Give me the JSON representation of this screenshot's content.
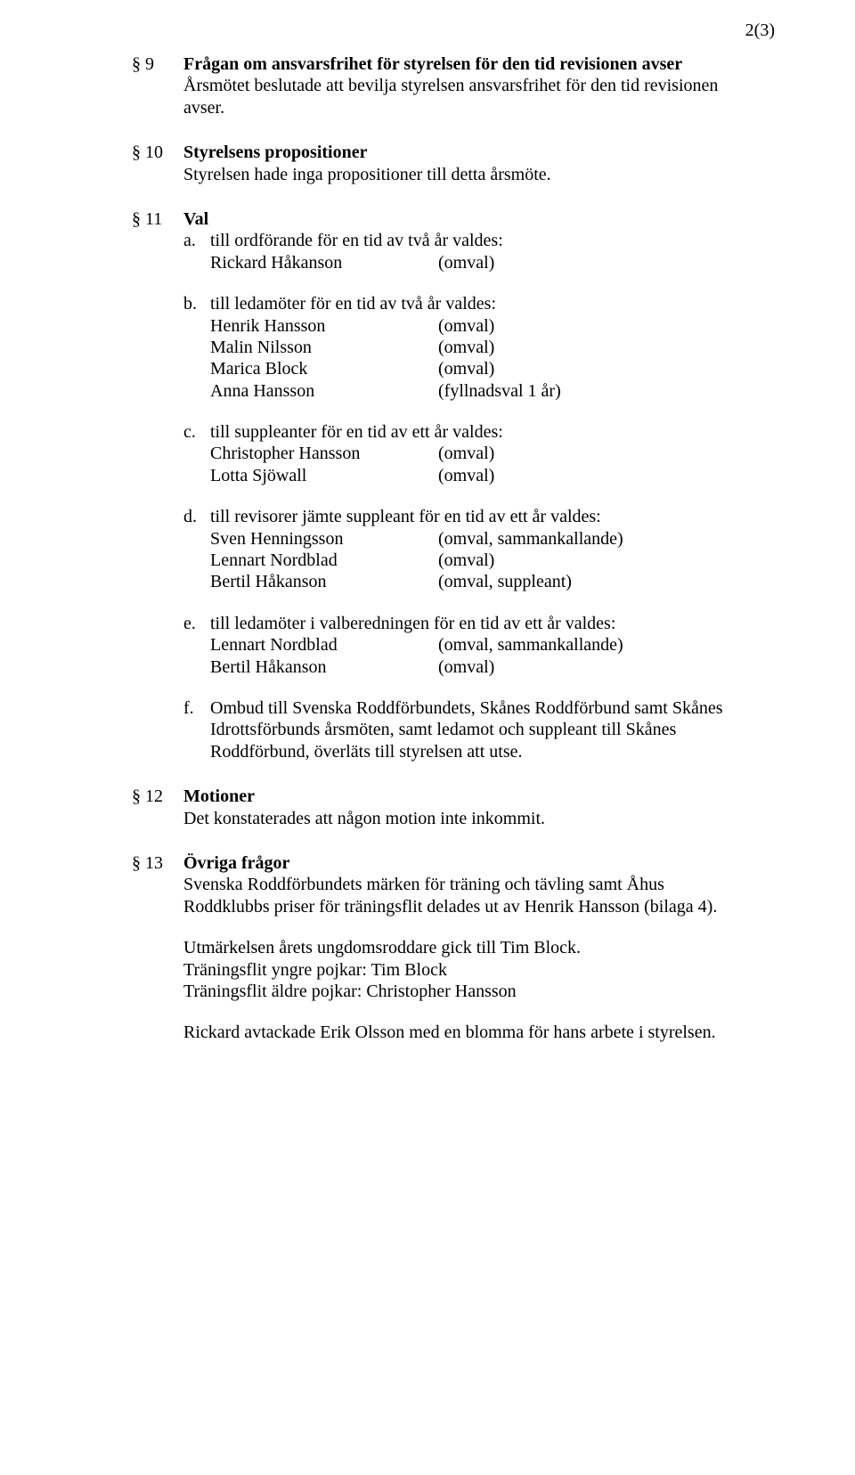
{
  "page_number": "2(3)",
  "s9": {
    "num": "§ 9",
    "title": "Frågan om ansvarsfrihet för styrelsen för den tid revisionen avser",
    "text": "Årsmötet beslutade att bevilja styrelsen ansvarsfrihet för den tid revisionen avser."
  },
  "s10": {
    "num": "§ 10",
    "title": "Styrelsens propositioner",
    "text": "Styrelsen hade inga propositioner till detta årsmöte."
  },
  "s11": {
    "num": "§ 11",
    "title": "Val",
    "a": {
      "lett": "a.",
      "lead": "till ordförande för en tid av två år valdes:",
      "rows": [
        {
          "name": "Rickard Håkanson",
          "note": "(omval)"
        }
      ]
    },
    "b": {
      "lett": "b.",
      "lead": "till ledamöter för en tid av två år valdes:",
      "rows": [
        {
          "name": "Henrik Hansson",
          "note": "(omval)"
        },
        {
          "name": "Malin Nilsson",
          "note": "(omval)"
        },
        {
          "name": "Marica Block",
          "note": "(omval)"
        },
        {
          "name": "Anna Hansson",
          "note": "(fyllnadsval 1 år)"
        }
      ]
    },
    "c": {
      "lett": "c.",
      "lead": "till suppleanter för en tid av ett år valdes:",
      "rows": [
        {
          "name": "Christopher Hansson",
          "note": "(omval)"
        },
        {
          "name": "Lotta Sjöwall",
          "note": "(omval)"
        }
      ]
    },
    "d": {
      "lett": "d.",
      "lead": "till revisorer jämte suppleant för en tid av ett år valdes:",
      "rows": [
        {
          "name": "Sven Henningsson",
          "note": "(omval, sammankallande)"
        },
        {
          "name": "Lennart Nordblad",
          "note": "(omval)"
        },
        {
          "name": "Bertil Håkanson",
          "note": "(omval, suppleant)"
        }
      ]
    },
    "e": {
      "lett": "e.",
      "lead": "till ledamöter i valberedningen för en tid av ett år valdes:",
      "rows": [
        {
          "name": "Lennart Nordblad",
          "note": "(omval, sammankallande)"
        },
        {
          "name": "Bertil Håkanson",
          "note": "(omval)"
        }
      ]
    },
    "f": {
      "lett": "f.",
      "text": "Ombud till Svenska Roddförbundets, Skånes Roddförbund samt Skånes Idrottsförbunds årsmöten, samt ledamot och suppleant till Skånes Roddförbund, överläts till styrelsen att utse."
    }
  },
  "s12": {
    "num": "§ 12",
    "title": "Motioner",
    "text": "Det konstaterades att någon motion inte inkommit."
  },
  "s13": {
    "num": "§ 13",
    "title": "Övriga frågor",
    "p1": "Svenska Roddförbundets märken för träning och tävling samt Åhus Roddklubbs priser för träningsflit delades ut av Henrik Hansson (bilaga 4).",
    "p2": "Utmärkelsen årets ungdomsroddare gick till Tim Block.",
    "p3": "Träningsflit yngre pojkar: Tim Block",
    "p4": "Träningsflit äldre pojkar: Christopher Hansson",
    "p5": "Rickard avtackade Erik Olsson med en blomma för hans arbete i styrelsen."
  }
}
